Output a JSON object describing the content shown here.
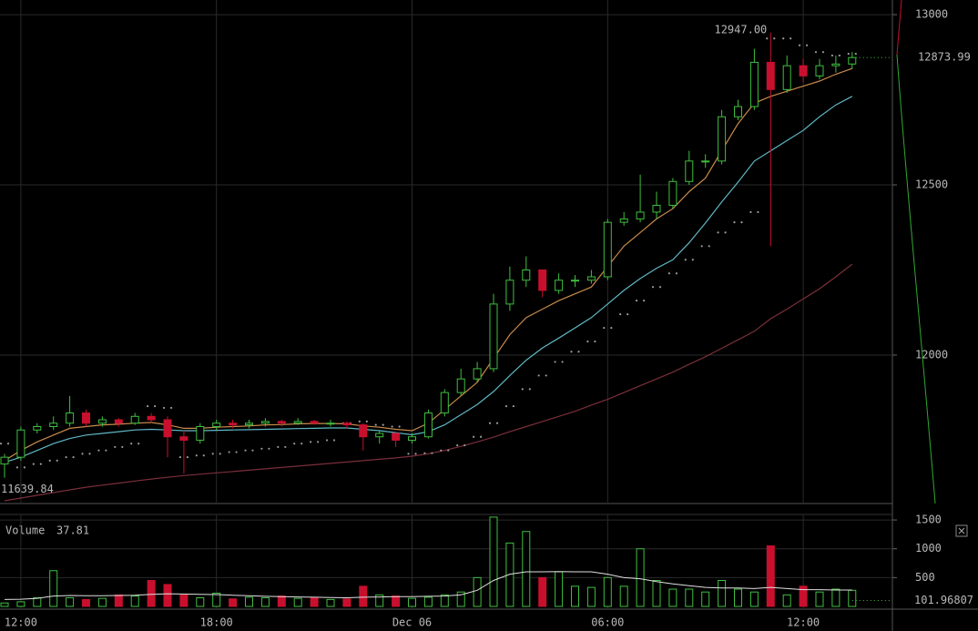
{
  "chart_data": {
    "type": "candlestick",
    "x": [
      0,
      1,
      2,
      3,
      4,
      5,
      6,
      7,
      8,
      9,
      10,
      11,
      12,
      13,
      14,
      15,
      16,
      17,
      18,
      19,
      20,
      21,
      22,
      23,
      24,
      25,
      26,
      27,
      28,
      29,
      30,
      31,
      32,
      33,
      34,
      35,
      36,
      37,
      38,
      39,
      40,
      41,
      42,
      43,
      44,
      45,
      46,
      47,
      48,
      49,
      50,
      51,
      52
    ],
    "open": [
      11680,
      11700,
      11780,
      11790,
      11800,
      11830,
      11800,
      11810,
      11800,
      11820,
      11810,
      11760,
      11750,
      11790,
      11800,
      11795,
      11800,
      11805,
      11800,
      11805,
      11800,
      11800,
      11795,
      11760,
      11770,
      11750,
      11760,
      11830,
      11890,
      11930,
      11960,
      12150,
      12220,
      12250,
      12190,
      12220,
      12220,
      12230,
      12390,
      12400,
      12420,
      12440,
      12510,
      12570,
      12570,
      12700,
      12730,
      12860,
      12780,
      12850,
      12820,
      12850,
      12855
    ],
    "high": [
      11710,
      11790,
      11800,
      11820,
      11880,
      11840,
      11820,
      11815,
      11830,
      11830,
      11820,
      11780,
      11800,
      11810,
      11810,
      11810,
      11815,
      11810,
      11815,
      11810,
      11810,
      11805,
      11800,
      11780,
      11775,
      11770,
      11840,
      11900,
      11960,
      11980,
      12180,
      12260,
      12290,
      12250,
      12240,
      12235,
      12250,
      12400,
      12420,
      12530,
      12480,
      12520,
      12600,
      12590,
      12720,
      12750,
      12900,
      12947,
      12880,
      12870,
      12870,
      12880,
      12890
    ],
    "low": [
      11639.84,
      11690,
      11770,
      11780,
      11790,
      11790,
      11790,
      11790,
      11795,
      11800,
      11700,
      11652,
      11740,
      11780,
      11785,
      11785,
      11790,
      11790,
      11795,
      11795,
      11790,
      11785,
      11720,
      11740,
      11730,
      11740,
      11755,
      11820,
      11880,
      11920,
      11950,
      12130,
      12200,
      12170,
      12180,
      12200,
      12210,
      12220,
      12380,
      12390,
      12400,
      12430,
      12500,
      12550,
      12560,
      12690,
      12720,
      12320,
      12770,
      12800,
      12810,
      12830,
      12840
    ],
    "close": [
      11700,
      11780,
      11790,
      11800,
      11830,
      11800,
      11810,
      11800,
      11820,
      11810,
      11760,
      11750,
      11790,
      11800,
      11795,
      11800,
      11805,
      11800,
      11805,
      11800,
      11800,
      11795,
      11760,
      11770,
      11750,
      11760,
      11830,
      11890,
      11930,
      11960,
      12150,
      12220,
      12250,
      12190,
      12220,
      12220,
      12230,
      12390,
      12400,
      12420,
      12440,
      12510,
      12570,
      12570,
      12700,
      12730,
      12860,
      12780,
      12850,
      12820,
      12850,
      12855,
      12873.99
    ],
    "up_color": "#3fbf3f",
    "down_color": "#c8102e",
    "lines": [
      {
        "color": "#c98a4b",
        "values": [
          11690,
          11720,
          11745,
          11765,
          11785,
          11790,
          11795,
          11797,
          11800,
          11802,
          11795,
          11785,
          11785,
          11788,
          11790,
          11792,
          11795,
          11796,
          11798,
          11799,
          11799,
          11798,
          11792,
          11788,
          11782,
          11778,
          11800,
          11840,
          11880,
          11920,
          11990,
          12060,
          12110,
          12135,
          12160,
          12180,
          12200,
          12260,
          12320,
          12360,
          12400,
          12430,
          12480,
          12520,
          12600,
          12680,
          12740,
          12760,
          12775,
          12790,
          12805,
          12825,
          12842
        ]
      },
      {
        "color": "#5fb8c4",
        "values": [
          11685,
          11700,
          11720,
          11740,
          11755,
          11765,
          11770,
          11775,
          11780,
          11782,
          11780,
          11778,
          11778,
          11779,
          11780,
          11781,
          11782,
          11783,
          11784,
          11785,
          11786,
          11786,
          11782,
          11778,
          11772,
          11766,
          11775,
          11795,
          11825,
          11855,
          11893,
          11940,
          11985,
          12021,
          12050,
          12080,
          12110,
          12150,
          12190,
          12225,
          12255,
          12280,
          12330,
          12388,
          12450,
          12508,
          12570,
          12600,
          12630,
          12660,
          12700,
          12735,
          12760
        ]
      },
      {
        "color": "#7a2f3a",
        "values": [
          11572,
          11580,
          11588,
          11596,
          11604,
          11612,
          11618,
          11624,
          11630,
          11636,
          11641,
          11646,
          11650,
          11654,
          11658,
          11662,
          11666,
          11670,
          11674,
          11678,
          11682,
          11686,
          11690,
          11694,
          11698,
          11703,
          11710,
          11720,
          11732,
          11745,
          11759,
          11775,
          11790,
          11805,
          11820,
          11835,
          11853,
          11870,
          11890,
          11910,
          11930,
          11950,
          11973,
          11995,
          12020,
          12045,
          12070,
          12107,
          12135,
          12165,
          12195,
          12230,
          12267
        ]
      }
    ],
    "sar": {
      "color": "#9a9a9a",
      "values": [
        11740,
        11670,
        11680,
        11690,
        11700,
        11710,
        11720,
        11730,
        11740,
        11850,
        11845,
        11700,
        11705,
        11710,
        11715,
        11720,
        11725,
        11730,
        11740,
        11745,
        11750,
        11800,
        11805,
        11795,
        11790,
        11710,
        11712,
        11720,
        11735,
        11760,
        11800,
        11850,
        11900,
        11940,
        11980,
        12010,
        12040,
        12080,
        12120,
        12160,
        12200,
        12240,
        12280,
        12320,
        12360,
        12390,
        12420,
        12930,
        12930,
        12910,
        12890,
        12880,
        12885
      ]
    },
    "xlim": [
      -0.28,
      54.47
    ],
    "ylim": [
      11564,
      13043
    ],
    "yticks": [
      12000,
      12500,
      13000
    ],
    "xticks": [
      {
        "value": 1,
        "label": "12:00"
      },
      {
        "value": 13,
        "label": "18:00"
      },
      {
        "value": 25,
        "label": "Dec 06"
      },
      {
        "value": 37,
        "label": "06:00"
      },
      {
        "value": 49,
        "label": "12:00"
      }
    ],
    "high_label": {
      "value": 12947,
      "label": "12947.00"
    },
    "low_label": {
      "value": 11639.84,
      "label": "11639.84"
    },
    "last_label": {
      "value": 12873.99,
      "label": "12873.99"
    },
    "volume": {
      "title": "Volume",
      "current": "37.81",
      "values": [
        60,
        80,
        150,
        620,
        150,
        120,
        140,
        200,
        180,
        450,
        380,
        200,
        150,
        230,
        130,
        160,
        150,
        180,
        140,
        150,
        120,
        130,
        350,
        200,
        180,
        140,
        160,
        200,
        250,
        500,
        1550,
        1100,
        1300,
        500,
        600,
        350,
        330,
        500,
        350,
        1000,
        450,
        300,
        300,
        250,
        450,
        300,
        250,
        1050,
        200,
        350,
        250,
        300,
        280
      ],
      "ma": {
        "color": "#e0e0e0",
        "values": [
          120,
          125,
          140,
          180,
          190,
          185,
          185,
          190,
          195,
          210,
          220,
          215,
          210,
          205,
          195,
          185,
          175,
          170,
          165,
          160,
          155,
          150,
          160,
          165,
          170,
          170,
          175,
          180,
          200,
          280,
          450,
          560,
          600,
          600,
          605,
          600,
          600,
          560,
          500,
          480,
          430,
          390,
          360,
          330,
          320,
          320,
          310,
          330,
          310,
          290,
          290,
          285,
          285
        ]
      },
      "ylim": [
        0,
        1580
      ],
      "yticks": [
        500,
        1000,
        1500
      ],
      "last_label": {
        "value": 101.96807,
        "label": "101.96807"
      }
    },
    "grid": true
  }
}
